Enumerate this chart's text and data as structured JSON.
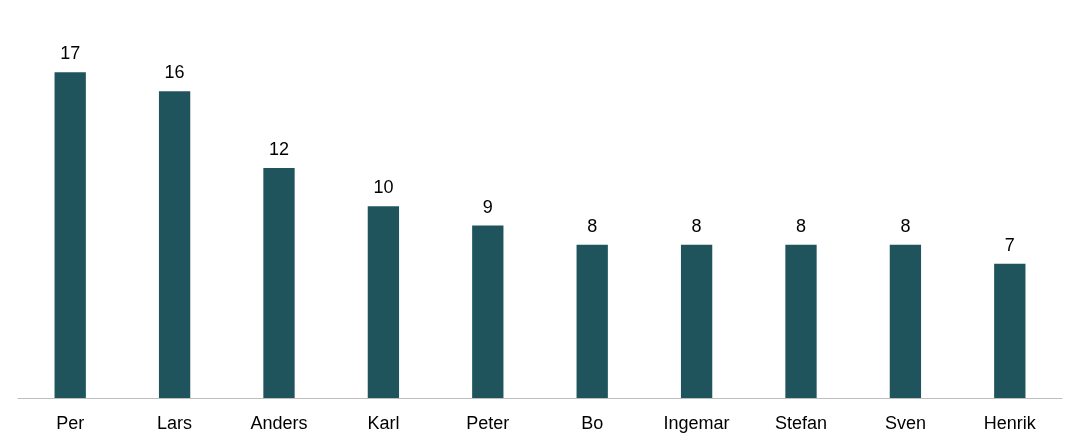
{
  "chart_data": {
    "type": "bar",
    "categories": [
      "Per",
      "Lars",
      "Anders",
      "Karl",
      "Peter",
      "Bo",
      "Ingemar",
      "Stefan",
      "Sven",
      "Henrik"
    ],
    "values": [
      17,
      16,
      12,
      10,
      9,
      8,
      8,
      8,
      8,
      7
    ],
    "color": "#1f545c",
    "data_labels": true
  }
}
